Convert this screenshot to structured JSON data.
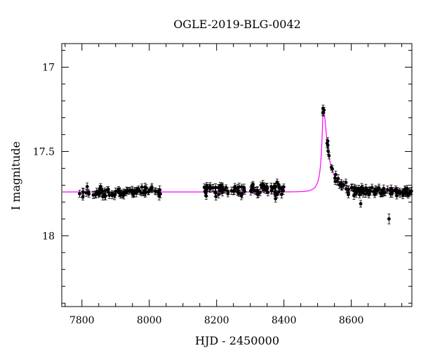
{
  "chart_data": {
    "type": "scatter",
    "title": "OGLE-2019-BLG-0042",
    "xlabel": "HJD - 2450000",
    "ylabel": "I magnitude",
    "xlim": [
      7740,
      8780
    ],
    "ylim": [
      18.42,
      16.86
    ],
    "y_inverted": true,
    "x_ticks": [
      7800,
      8000,
      8200,
      8400,
      8600
    ],
    "y_ticks": [
      17,
      17.5,
      18
    ],
    "y_tick_labels": [
      "17",
      "17.5",
      "18"
    ],
    "grid": false,
    "colors": {
      "data": "#000000",
      "model": "#ff00ff"
    },
    "series": [
      {
        "kind": "observations",
        "marker": "filled-circle-with-errorbars",
        "segments": [
          {
            "x_range": [
              7792,
              8035
            ],
            "mag_base": 17.74,
            "scatter": 0.02,
            "err": 0.02,
            "count": 90
          },
          {
            "x_range": [
              8163,
              8400
            ],
            "mag_base": 17.73,
            "scatter": 0.025,
            "err": 0.02,
            "count": 95
          },
          {
            "x_range": [
              8515,
              8780
            ],
            "follows_model": true,
            "scatter": 0.02,
            "err": 0.02,
            "count": 110
          }
        ],
        "outliers": [
          {
            "x": 8712,
            "y": 17.9,
            "err": 0.03
          },
          {
            "x": 8628,
            "y": 17.81,
            "err": 0.02
          },
          {
            "x": 8375,
            "y": 17.78,
            "err": 0.02
          }
        ]
      },
      {
        "kind": "model",
        "style": "line",
        "baseline": 17.74,
        "peak_x": 8517,
        "peak_y": 17.26,
        "t_E": 42,
        "u0": 0.17,
        "skew_rise": 0.55,
        "skew_fall": 1.45
      }
    ]
  }
}
